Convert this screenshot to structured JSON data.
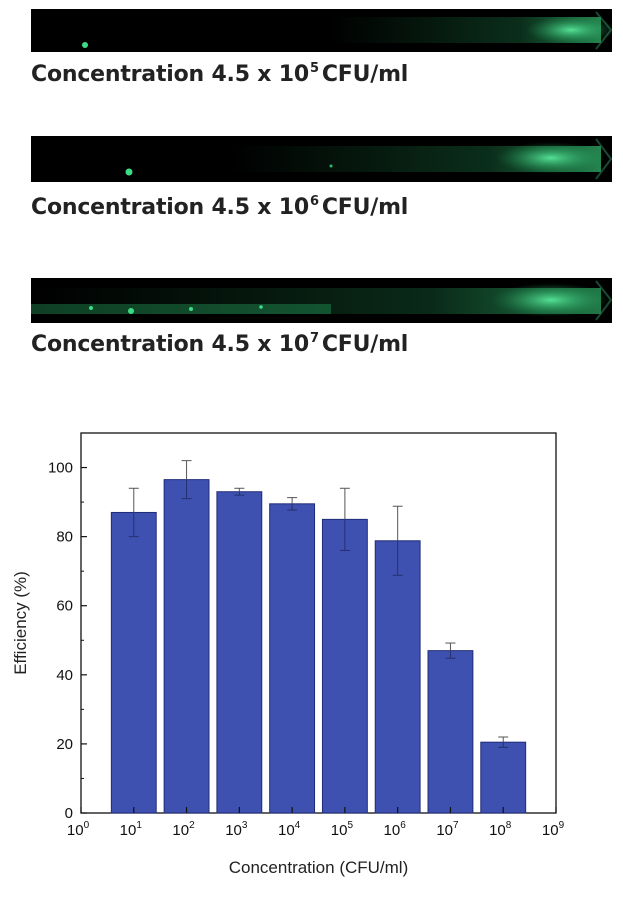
{
  "panels": [
    {
      "caption_prefix": "Concentration 4.5 x 10",
      "caption_exp": "5",
      "caption_suffix": "CFU/ml"
    },
    {
      "caption_prefix": "Concentration 4.5  x 10",
      "caption_exp": "6",
      "caption_suffix": "CFU/ml"
    },
    {
      "caption_prefix": "Concentration 4.5 x 10",
      "caption_exp": "7",
      "caption_suffix": "CFU/ml"
    }
  ],
  "colors": {
    "bar": "#3f51b0",
    "bar_edge": "#1f2c78",
    "fluorescence": "#3ddc84"
  },
  "chart_data": {
    "type": "bar",
    "xlabel": "Concentration (CFU/ml)",
    "ylabel": "Efficiency (%)",
    "x_scale": "log",
    "xlim": [
      1,
      1000000000
    ],
    "ylim": [
      0,
      110
    ],
    "x_ticks": [
      {
        "base": "10",
        "exp": "0"
      },
      {
        "base": "10",
        "exp": "1"
      },
      {
        "base": "10",
        "exp": "2"
      },
      {
        "base": "10",
        "exp": "3"
      },
      {
        "base": "10",
        "exp": "4"
      },
      {
        "base": "10",
        "exp": "5"
      },
      {
        "base": "10",
        "exp": "6"
      },
      {
        "base": "10",
        "exp": "7"
      },
      {
        "base": "10",
        "exp": "8"
      },
      {
        "base": "10",
        "exp": "9"
      }
    ],
    "y_ticks": [
      "0",
      "20",
      "40",
      "60",
      "80",
      "100"
    ],
    "y_tick_values": [
      0,
      20,
      40,
      60,
      80,
      100
    ],
    "x": [
      10,
      100,
      1000,
      10000,
      100000,
      1000000,
      10000000,
      100000000
    ],
    "values": [
      87,
      96.5,
      93,
      89.5,
      85,
      78.8,
      47,
      20.5
    ],
    "errors": [
      7,
      5.5,
      1,
      1.8,
      9,
      10,
      2.2,
      1.5
    ],
    "grid": false,
    "legend": "none"
  }
}
